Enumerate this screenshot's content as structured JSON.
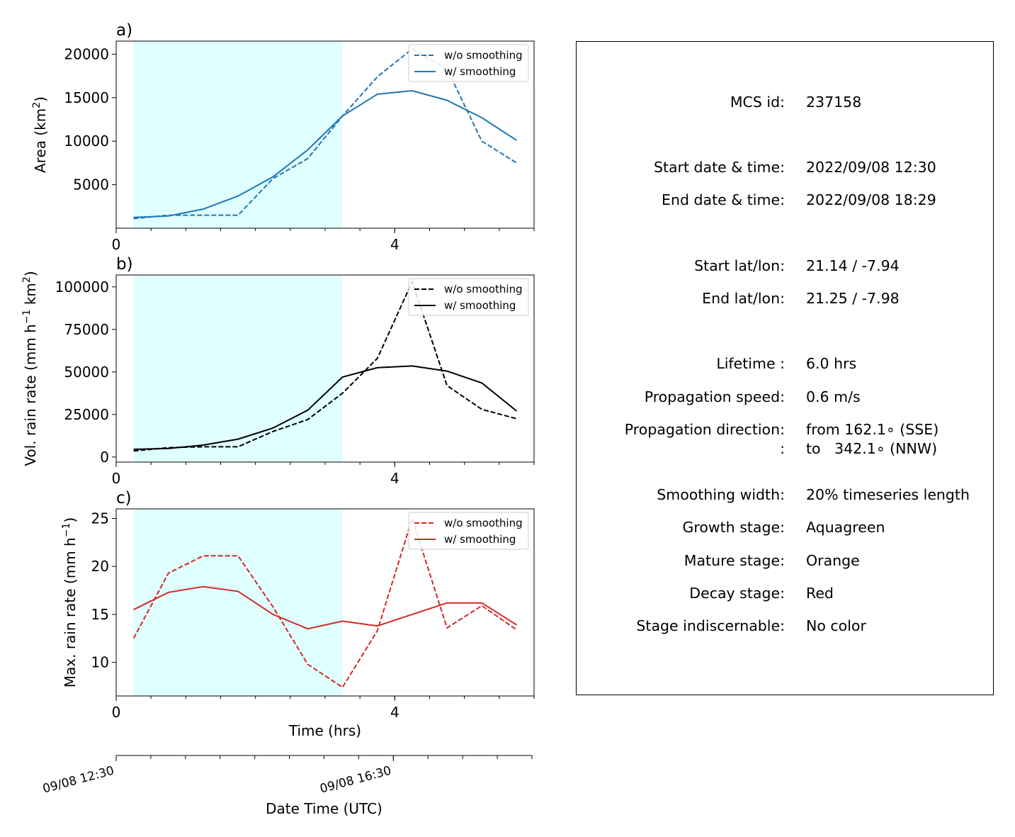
{
  "chart_data": [
    {
      "type": "line",
      "panel_label": "a)",
      "ylabel": "Area  (km²)",
      "xlim": [
        0,
        6
      ],
      "ylim": [
        0,
        21500
      ],
      "yticks": [
        5000,
        10000,
        15000,
        20000
      ],
      "ytick_labels": [
        "5000",
        "10000",
        "15000",
        "20000"
      ],
      "xticks": [
        0,
        4
      ],
      "xtick_labels": [
        "0",
        "4"
      ],
      "x_minor_step": 0.5,
      "shaded_span": [
        0.25,
        3.25
      ],
      "legend_position": "top-right",
      "series": [
        {
          "name": "w/o smoothing",
          "style": "dashed",
          "color": "#1f77b4",
          "x": [
            0.25,
            0.75,
            1.25,
            1.75,
            2.25,
            2.75,
            3.25,
            3.75,
            4.25,
            4.75,
            5.25,
            5.75
          ],
          "y": [
            1100,
            1500,
            1500,
            1500,
            5700,
            8000,
            12900,
            17400,
            20600,
            18300,
            10000,
            7500
          ]
        },
        {
          "name": "w/ smoothing",
          "style": "solid",
          "color": "#1f77b4",
          "x": [
            0.25,
            0.75,
            1.25,
            1.75,
            2.25,
            2.75,
            3.25,
            3.75,
            4.25,
            4.75,
            5.25,
            5.75
          ],
          "y": [
            1250,
            1400,
            2200,
            3700,
            5900,
            9000,
            12900,
            15400,
            15800,
            14700,
            12700,
            10100
          ]
        }
      ]
    },
    {
      "type": "line",
      "panel_label": "b)",
      "ylabel": "Vol. rain rate (mm h⁻¹ km²)",
      "xlim": [
        0,
        6
      ],
      "ylim": [
        -3000,
        107000
      ],
      "yticks": [
        0,
        25000,
        50000,
        75000,
        100000
      ],
      "ytick_labels": [
        "0",
        "25000",
        "50000",
        "75000",
        "100000"
      ],
      "xticks": [
        0,
        4
      ],
      "xtick_labels": [
        "0",
        "4"
      ],
      "x_minor_step": 0.5,
      "shaded_span": [
        0.25,
        3.25
      ],
      "legend_position": "top-right",
      "series": [
        {
          "name": "w/o smoothing",
          "style": "dashed",
          "color": "#000000",
          "x": [
            0.25,
            0.75,
            1.25,
            1.75,
            2.25,
            2.75,
            3.25,
            3.75,
            4.25,
            4.75,
            5.25,
            5.75
          ],
          "y": [
            3500,
            5500,
            6000,
            6000,
            15000,
            22000,
            37500,
            58000,
            103000,
            42000,
            28000,
            22500
          ]
        },
        {
          "name": "w/ smoothing",
          "style": "solid",
          "color": "#000000",
          "x": [
            0.25,
            0.75,
            1.25,
            1.75,
            2.25,
            2.75,
            3.25,
            3.75,
            4.25,
            4.75,
            5.25,
            5.75
          ],
          "y": [
            4500,
            5000,
            7000,
            10500,
            17000,
            27500,
            47000,
            52500,
            53500,
            50500,
            43500,
            27000
          ]
        }
      ]
    },
    {
      "type": "line",
      "panel_label": "c)",
      "ylabel": "Max. rain rate  (mm h⁻¹)",
      "xlabel": "Time (hrs)",
      "xlim": [
        0,
        6
      ],
      "ylim": [
        6.5,
        26
      ],
      "yticks": [
        10,
        15,
        20,
        25
      ],
      "ytick_labels": [
        "10",
        "15",
        "20",
        "25"
      ],
      "xticks": [
        0,
        4
      ],
      "xtick_labels": [
        "0",
        "4"
      ],
      "x_minor_step": 0.5,
      "shaded_span": [
        0.25,
        3.25
      ],
      "legend_position": "top-right",
      "series": [
        {
          "name": "w/o smoothing",
          "style": "dashed",
          "color": "#d62728",
          "x": [
            0.25,
            0.75,
            1.25,
            1.75,
            2.25,
            2.75,
            3.25,
            3.75,
            4.25,
            4.75,
            5.25,
            5.75
          ],
          "y": [
            12.5,
            19.3,
            21.1,
            21.1,
            15.8,
            9.8,
            7.4,
            13.3,
            25.0,
            13.6,
            15.9,
            13.4
          ]
        },
        {
          "name": "w/ smoothing",
          "style": "solid",
          "color": "#d62728",
          "x": [
            0.25,
            0.75,
            1.25,
            1.75,
            2.25,
            2.75,
            3.25,
            3.75,
            4.25,
            4.75,
            5.25,
            5.75
          ],
          "y": [
            15.5,
            17.3,
            17.9,
            17.4,
            15.0,
            13.5,
            14.3,
            13.8,
            15.0,
            16.2,
            16.2,
            13.9
          ]
        }
      ]
    }
  ],
  "time_axis": {
    "xlabel": "Date Time (UTC)",
    "tick_labels": [
      "09/08 12:30",
      "09/08 16:30"
    ],
    "tick_hours": [
      0,
      4
    ],
    "minor_step_hours": 0.5,
    "range_hours": [
      0,
      6
    ]
  },
  "info": {
    "rows": [
      {
        "label": "MCS id:",
        "value": "237158"
      },
      {
        "label": "Start date & time:",
        "value": "2022/09/08 12:30"
      },
      {
        "label": "End date & time:",
        "value": "2022/09/08 18:29"
      },
      {
        "label": "Start lat/lon:",
        "value": "21.14 / -7.94"
      },
      {
        "label": "End lat/lon:",
        "value": "21.25 / -7.98"
      },
      {
        "label": "Lifetime :",
        "value": "6.0 hrs"
      },
      {
        "label": "Propagation speed:",
        "value": "0.6 m/s"
      },
      {
        "label": "Propagation direction:",
        "value": "from 162.1∘ (SSE)"
      },
      {
        "label": ":",
        "value": "to   342.1∘ (NNW)"
      },
      {
        "label": "Smoothing width:",
        "value": "20% timeseries length"
      },
      {
        "label": "Growth stage:",
        "value": "Aquagreen"
      },
      {
        "label": "Mature stage:",
        "value": "Orange"
      },
      {
        "label": "Decay stage:",
        "value": "Red"
      },
      {
        "label": "Stage indiscernable:",
        "value": "No color"
      }
    ]
  },
  "colors": {
    "growth_shade": "#e0ffff",
    "legend_border": "#cccccc"
  }
}
